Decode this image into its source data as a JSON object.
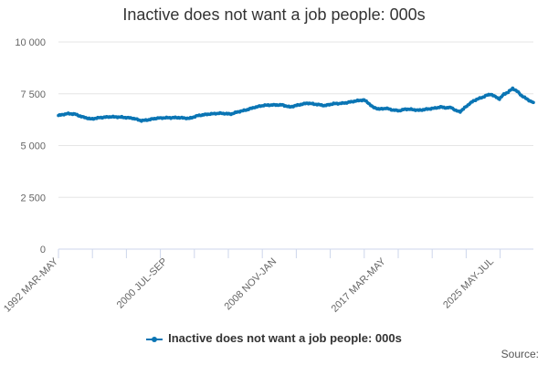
{
  "title": "Inactive does not want a job people: 000s",
  "legend_label": "Inactive does not want a job people: 000s",
  "source_label": "Source:",
  "colors": {
    "series": "#0a75b4",
    "grid": "#e6e6e6",
    "axis": "#ccd6eb",
    "text": "#666666"
  },
  "chart_data": {
    "type": "line",
    "title": "Inactive does not want a job people: 000s",
    "xlabel": "",
    "ylabel": "",
    "ylim": [
      0,
      10000
    ],
    "yticks": [
      0,
      2500,
      5000,
      7500,
      10000
    ],
    "ytick_labels": [
      "0",
      "2 500",
      "5 000",
      "7 500",
      "10 000"
    ],
    "xtick_labels": [
      {
        "label": "1992 MAR-MAY",
        "x": 0
      },
      {
        "label": "2000 JUL-SEP",
        "x": 100
      },
      {
        "label": "2008 NOV-JAN",
        "x": 200
      },
      {
        "label": "2017 MAR-MAY",
        "x": 300
      },
      {
        "label": "2025 MAY-JUL",
        "x": 399
      }
    ],
    "grid": true,
    "legend": "bottom",
    "series": [
      {
        "name": "Inactive does not want a job people: 000s",
        "points": [
          [
            0,
            6450
          ],
          [
            8,
            6540
          ],
          [
            15,
            6520
          ],
          [
            22,
            6380
          ],
          [
            30,
            6280
          ],
          [
            38,
            6350
          ],
          [
            48,
            6390
          ],
          [
            58,
            6370
          ],
          [
            68,
            6320
          ],
          [
            76,
            6200
          ],
          [
            82,
            6240
          ],
          [
            90,
            6320
          ],
          [
            98,
            6340
          ],
          [
            110,
            6350
          ],
          [
            120,
            6310
          ],
          [
            128,
            6450
          ],
          [
            138,
            6520
          ],
          [
            148,
            6560
          ],
          [
            158,
            6520
          ],
          [
            164,
            6620
          ],
          [
            172,
            6720
          ],
          [
            180,
            6850
          ],
          [
            188,
            6940
          ],
          [
            196,
            6960
          ],
          [
            205,
            6960
          ],
          [
            212,
            6860
          ],
          [
            220,
            6960
          ],
          [
            228,
            7050
          ],
          [
            236,
            6990
          ],
          [
            244,
            6930
          ],
          [
            252,
            7020
          ],
          [
            258,
            7030
          ],
          [
            264,
            7070
          ],
          [
            270,
            7130
          ],
          [
            276,
            7180
          ],
          [
            280,
            7200
          ],
          [
            284,
            7050
          ],
          [
            288,
            6850
          ],
          [
            294,
            6760
          ],
          [
            300,
            6800
          ],
          [
            306,
            6720
          ],
          [
            312,
            6680
          ],
          [
            318,
            6760
          ],
          [
            324,
            6740
          ],
          [
            330,
            6700
          ],
          [
            338,
            6760
          ],
          [
            344,
            6800
          ],
          [
            350,
            6860
          ],
          [
            356,
            6820
          ],
          [
            360,
            6840
          ],
          [
            364,
            6680
          ],
          [
            368,
            6640
          ],
          [
            372,
            6820
          ],
          [
            376,
            7000
          ],
          [
            380,
            7150
          ],
          [
            384,
            7250
          ],
          [
            388,
            7320
          ],
          [
            392,
            7420
          ],
          [
            396,
            7480
          ],
          [
            400,
            7360
          ],
          [
            404,
            7250
          ],
          [
            408,
            7480
          ],
          [
            412,
            7580
          ],
          [
            416,
            7760
          ],
          [
            420,
            7620
          ],
          [
            424,
            7420
          ],
          [
            428,
            7280
          ],
          [
            432,
            7150
          ],
          [
            435,
            7080
          ]
        ]
      }
    ]
  }
}
